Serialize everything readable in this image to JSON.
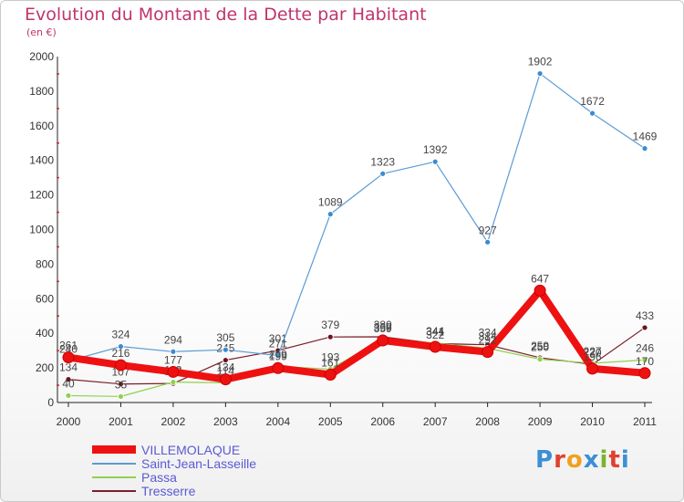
{
  "title": "Evolution du Montant de la Dette par Habitant",
  "subtitle": "(en €)",
  "logo": "Proxiti",
  "chart_data": {
    "type": "line",
    "x": [
      "2000",
      "2001",
      "2002",
      "2003",
      "2004",
      "2005",
      "2006",
      "2007",
      "2008",
      "2009",
      "2010",
      "2011"
    ],
    "ylim": [
      0,
      2000
    ],
    "yticks": [
      0,
      200,
      400,
      600,
      800,
      1000,
      1200,
      1400,
      1600,
      1800,
      2000
    ],
    "grid": false,
    "legend_position": "bottom-left",
    "series": [
      {
        "name": "VILLEMOLAQUE",
        "color": "#ee1111",
        "values": [
          261,
          216,
          177,
          134,
          199,
          161,
          359,
          322,
          292,
          647,
          196,
          170
        ]
      },
      {
        "name": "Saint-Jean-Lasseille",
        "color": "#5b9bd5",
        "values": [
          240,
          324,
          294,
          305,
          271,
          1089,
          1323,
          1392,
          927,
          1902,
          1672,
          1469
        ]
      },
      {
        "name": "Passa",
        "color": "#8fd14f",
        "values": [
          40,
          35,
          118,
          114,
          209,
          193,
          368,
          344,
          314,
          250,
          227,
          246
        ]
      },
      {
        "name": "Tresserre",
        "color": "#7a1f2b",
        "values": [
          134,
          107,
          110,
          245,
          301,
          379,
          380,
          341,
          334,
          259,
          220,
          433
        ]
      }
    ]
  }
}
